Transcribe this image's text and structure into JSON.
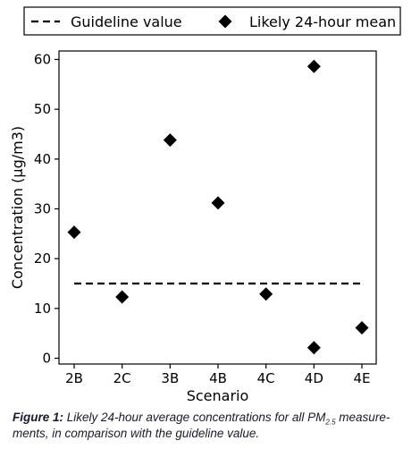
{
  "chart_data": {
    "type": "scatter",
    "xlabel": "Scenario",
    "ylabel": "Concentration (µg/m3)",
    "categories": [
      "2B",
      "2C",
      "3B",
      "4B",
      "4C",
      "4D",
      "4E"
    ],
    "ylim": [
      0,
      60
    ],
    "yticks": [
      0,
      10,
      20,
      30,
      40,
      50,
      60
    ],
    "grid": false,
    "legend_position": "top",
    "series": [
      {
        "name": "Likely 24-hour mean",
        "marker": "diamond",
        "color": "#000000",
        "points": [
          {
            "x": "2B",
            "y": 25.3
          },
          {
            "x": "2C",
            "y": 12.3
          },
          {
            "x": "3B",
            "y": 43.8
          },
          {
            "x": "4B",
            "y": 31.2
          },
          {
            "x": "4C",
            "y": 12.9
          },
          {
            "x": "4D",
            "y": 58.6
          },
          {
            "x": "4D",
            "y": 2.1
          },
          {
            "x": "4E",
            "y": 6.1
          }
        ]
      }
    ],
    "reference_line": {
      "name": "Guideline value",
      "y": 15,
      "style": "dashed",
      "color": "#000000"
    }
  },
  "caption": {
    "label": "Figure 1:",
    "text_before": " Likely 24-hour average concentrations for all PM",
    "subscript": "2.5",
    "text_after": " measure-ments, in comparison with the guideline value."
  }
}
